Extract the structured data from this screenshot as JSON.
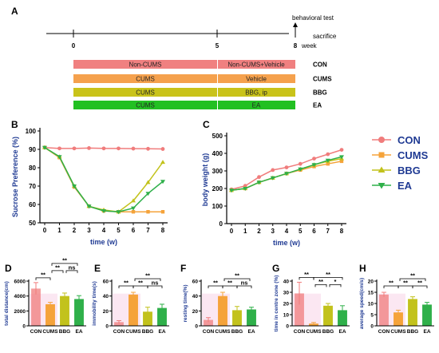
{
  "panel_letters": [
    "A",
    "B",
    "C",
    "D",
    "E",
    "F",
    "G",
    "H"
  ],
  "timeline": {
    "ticks": [
      "0",
      "5",
      "8"
    ],
    "unit": "week",
    "events": [
      "behavioral test",
      "sacrifice"
    ],
    "rows": [
      {
        "group": "CON",
        "seg1": "Non-CUMS",
        "seg2": "Non-CUMS+Vehicle",
        "c1": "#f08080",
        "c2": "#f08080"
      },
      {
        "group": "CUMS",
        "seg1": "CUMS",
        "seg2": "Vehicle",
        "c1": "#f5a14d",
        "c2": "#f5a14d"
      },
      {
        "group": "BBG",
        "seg1": "CUMS",
        "seg2": "BBG, ip",
        "c1": "#c9c31a",
        "c2": "#c9c31a"
      },
      {
        "group": "EA",
        "seg1": "CUMS",
        "seg2": "EA",
        "c1": "#22c022",
        "c2": "#22c022"
      }
    ]
  },
  "colors": {
    "CON": "#f07c7c",
    "CUMS": "#f5a33a",
    "BBG": "#c2c21c",
    "EA": "#2fb04a"
  },
  "legend": [
    "CON",
    "CUMS",
    "BBG",
    "EA"
  ],
  "chart_data": [
    {
      "type": "line",
      "panel": "B",
      "ylabel": "Sucrose Preference  (%)",
      "xlabel": "time  (w)",
      "x": [
        0,
        1,
        2,
        3,
        4,
        5,
        6,
        7,
        8
      ],
      "xticks": [
        "0",
        "1",
        "2",
        "3",
        "4",
        "5",
        "6",
        "7",
        "8"
      ],
      "yticks": [
        "50",
        "60",
        "70",
        "80",
        "90",
        "100"
      ],
      "ylim": [
        50,
        100
      ],
      "series": [
        {
          "name": "CON",
          "values": [
            91,
            90.5,
            90.5,
            90.7,
            90.5,
            90.5,
            90.4,
            90.3,
            90.2
          ]
        },
        {
          "name": "CUMS",
          "values": [
            91,
            85.5,
            69.5,
            59,
            56.5,
            56,
            56,
            56,
            56
          ]
        },
        {
          "name": "BBG",
          "values": [
            91,
            86,
            70,
            59,
            57,
            56,
            62,
            72,
            83
          ]
        },
        {
          "name": "EA",
          "values": [
            91,
            86,
            70,
            59,
            56.5,
            56,
            58,
            66,
            72.5
          ]
        }
      ]
    },
    {
      "type": "line",
      "panel": "C",
      "ylabel": "body weight (g)",
      "xlabel": "time  (w)",
      "x": [
        0,
        1,
        2,
        3,
        4,
        5,
        6,
        7,
        8
      ],
      "xticks": [
        "0",
        "1",
        "2",
        "3",
        "4",
        "5",
        "6",
        "7",
        "8"
      ],
      "yticks": [
        "0",
        "100",
        "200",
        "300",
        "400",
        "500"
      ],
      "ylim": [
        0,
        500
      ],
      "series": [
        {
          "name": "CON",
          "values": [
            195,
            215,
            265,
            305,
            320,
            340,
            370,
            395,
            420
          ]
        },
        {
          "name": "CUMS",
          "values": [
            190,
            200,
            235,
            260,
            285,
            305,
            325,
            340,
            355
          ]
        },
        {
          "name": "BBG",
          "values": [
            190,
            200,
            235,
            260,
            285,
            310,
            335,
            355,
            370
          ]
        },
        {
          "name": "EA",
          "values": [
            190,
            200,
            235,
            260,
            285,
            310,
            335,
            360,
            380
          ]
        }
      ]
    },
    {
      "type": "bar",
      "panel": "D",
      "ylabel": "total distance(cm)",
      "categories": [
        "CON",
        "CUMS",
        "BBG",
        "EA"
      ],
      "values": [
        5000,
        2900,
        4000,
        3600
      ],
      "errors": [
        800,
        250,
        400,
        450
      ],
      "yticks": [
        "0",
        "2000",
        "4000",
        "6000"
      ],
      "ylim": [
        0,
        6000
      ],
      "sig": [
        {
          "a": 0,
          "b": 1,
          "label": "**",
          "level": 0
        },
        {
          "a": 1,
          "b": 2,
          "label": "**",
          "level": 1
        },
        {
          "a": 2,
          "b": 3,
          "label": "ns",
          "level": 1
        },
        {
          "a": 1,
          "b": 3,
          "label": "**",
          "level": 2
        }
      ]
    },
    {
      "type": "bar",
      "panel": "E",
      "ylabel": "immobility time(s)",
      "categories": [
        "CON",
        "CUMS",
        "BBG",
        "EA"
      ],
      "values": [
        5,
        42,
        19,
        24
      ],
      "errors": [
        2,
        3,
        6,
        5
      ],
      "yticks": [
        "0",
        "20",
        "40",
        "60"
      ],
      "ylim": [
        0,
        60
      ],
      "sig": [
        {
          "a": 0,
          "b": 1,
          "label": "**",
          "level": 0
        },
        {
          "a": 1,
          "b": 2,
          "label": "**",
          "level": 0
        },
        {
          "a": 2,
          "b": 3,
          "label": "ns",
          "level": 0
        },
        {
          "a": 1,
          "b": 3,
          "label": "**",
          "level": 1
        }
      ]
    },
    {
      "type": "bar",
      "panel": "F",
      "ylabel": "resting time(%)",
      "categories": [
        "CON",
        "CUMS",
        "BBG",
        "EA"
      ],
      "values": [
        8,
        40,
        21,
        22
      ],
      "errors": [
        3,
        5,
        5,
        3
      ],
      "yticks": [
        "0",
        "20",
        "40",
        "60"
      ],
      "ylim": [
        0,
        60
      ],
      "sig": [
        {
          "a": 0,
          "b": 1,
          "label": "**",
          "level": 0
        },
        {
          "a": 1,
          "b": 2,
          "label": "**",
          "level": 0
        },
        {
          "a": 2,
          "b": 3,
          "label": "ns",
          "level": 0
        },
        {
          "a": 1,
          "b": 3,
          "label": "**",
          "level": 1
        }
      ]
    },
    {
      "type": "bar",
      "panel": "G",
      "ylabel": "time in centre zone (%)",
      "categories": [
        "CON",
        "CUMS",
        "BBG",
        "EA"
      ],
      "values": [
        29,
        2,
        18,
        14
      ],
      "errors": [
        10,
        1,
        2,
        4
      ],
      "yticks": [
        "0",
        "10",
        "20",
        "30",
        "40"
      ],
      "ylim": [
        0,
        40
      ],
      "sig": [
        {
          "a": 0,
          "b": 1,
          "label": "**",
          "level": 0
        },
        {
          "a": 1,
          "b": 2,
          "label": "**",
          "level": -1
        },
        {
          "a": 2,
          "b": 3,
          "label": "*",
          "level": -1
        },
        {
          "a": 1,
          "b": 3,
          "label": "**",
          "level": 0
        }
      ]
    },
    {
      "type": "bar",
      "panel": "H",
      "ylabel": "average speed(cm/s)",
      "categories": [
        "CON",
        "CUMS",
        "BBG",
        "EA"
      ],
      "values": [
        14,
        6,
        12,
        9.5
      ],
      "errors": [
        1,
        1,
        1,
        1
      ],
      "yticks": [
        "0",
        "5",
        "10",
        "15",
        "20"
      ],
      "ylim": [
        0,
        20
      ],
      "sig": [
        {
          "a": 0,
          "b": 1,
          "label": "**",
          "level": 0
        },
        {
          "a": 1,
          "b": 2,
          "label": "**",
          "level": 0
        },
        {
          "a": 2,
          "b": 3,
          "label": "**",
          "level": 0
        },
        {
          "a": 1,
          "b": 3,
          "label": "**",
          "level": 1
        }
      ]
    }
  ]
}
